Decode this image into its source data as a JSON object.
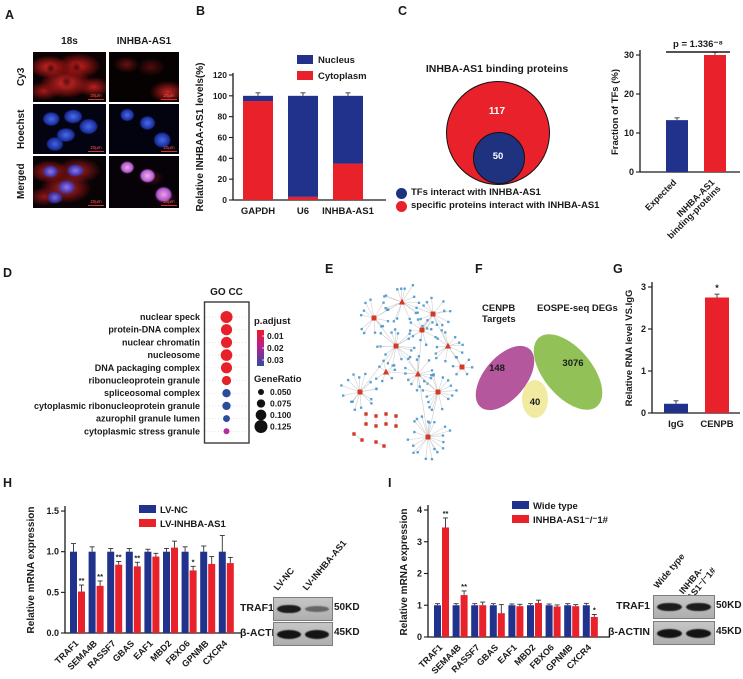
{
  "panelA": {
    "label": "A",
    "col_titles": [
      "18s",
      "INHBA-AS1"
    ],
    "row_labels": [
      "Cy3",
      "Hoechst",
      "Merged"
    ],
    "scale_bar": "20μm"
  },
  "panelB": {
    "label": "B"
  },
  "panelC": {
    "label": "C",
    "venn": {
      "title": "INHBA-AS1 binding proteins",
      "outer_value": "117",
      "inner_value": "50",
      "outer_color": "#e8212a",
      "inner_color": "#1f3280",
      "legend": [
        {
          "color": "#1f3280",
          "text": "TFs interact with INHBA-AS1"
        },
        {
          "color": "#e8212a",
          "text": "specific proteins interact with INHBA-AS1"
        }
      ]
    }
  },
  "panelD": {
    "label": "D"
  },
  "panelE": {
    "label": "E"
  },
  "panelF": {
    "label": "F"
  },
  "panelG": {
    "label": "G"
  },
  "panelH": {
    "label": "H",
    "blot": {
      "lanes": [
        "LV-NC",
        "LV-INHBA-AS1"
      ],
      "rows": [
        {
          "label": "TRAF1",
          "kd": "50KD",
          "bands": [
            0.95,
            0.5
          ]
        },
        {
          "label": "β-ACTIN",
          "kd": "45KD",
          "bands": [
            1,
            1
          ]
        }
      ]
    }
  },
  "panelI": {
    "label": "I",
    "blot": {
      "lanes": [
        "Wide type",
        "INHBA-\nAS1⁻/⁻1#"
      ],
      "rows": [
        {
          "label": "TRAF1",
          "kd": "50KD",
          "bands": [
            0.95,
            0.95
          ]
        },
        {
          "label": "β-ACTIN",
          "kd": "45KD",
          "bands": [
            1,
            1
          ]
        }
      ]
    }
  },
  "chart_data": {
    "B": {
      "type": "bar",
      "subtype": "stacked",
      "ylabel": "Relative INHBAA-AS1 levels(%)",
      "ylim": [
        0,
        120
      ],
      "yticks": [
        0,
        20,
        40,
        60,
        80,
        100,
        120
      ],
      "ytick_labels": [
        "0",
        "20",
        "40",
        "60",
        "80",
        "100",
        "120"
      ],
      "categories": [
        "GAPDH",
        "U6",
        "INHBA-AS1"
      ],
      "series": [
        {
          "name": "Nucleus",
          "color": "#20328c",
          "values": [
            5,
            97,
            65
          ]
        },
        {
          "name": "Cytoplasm",
          "color": "#e8212a",
          "values": [
            95,
            3,
            35
          ]
        }
      ]
    },
    "C_bar": {
      "type": "bar",
      "ylabel": "Fraction of TFs (%)",
      "ylim": [
        0,
        30
      ],
      "yticks": [
        0,
        10,
        20,
        30
      ],
      "ytick_labels": [
        "0",
        "10",
        "20",
        "30"
      ],
      "categories": [
        "Expected",
        "INHBA-AS1 binding-proteins"
      ],
      "category_lines": [
        [
          "Expected"
        ],
        [
          "INHBA-AS1",
          "binding-proteins"
        ]
      ],
      "values": [
        13.3,
        30
      ],
      "errors": [
        0.2,
        0.3
      ],
      "colors": [
        "#20328c",
        "#e8212a"
      ],
      "annotation": "p = 1.336⁻⁸"
    },
    "D": {
      "type": "scatter",
      "subtype": "dotplot",
      "title": "GO CC",
      "rows": [
        {
          "term": "nuclear speck",
          "ratio": 0.115,
          "color": "#e8202a"
        },
        {
          "term": "protein-DNA complex",
          "ratio": 0.105,
          "color": "#e8202a"
        },
        {
          "term": "nuclear chromatin",
          "ratio": 0.105,
          "color": "#e8202a"
        },
        {
          "term": "nucleosome",
          "ratio": 0.11,
          "color": "#e8202a"
        },
        {
          "term": "DNA packaging complex",
          "ratio": 0.105,
          "color": "#e8202a"
        },
        {
          "term": "ribonucleoprotein granule",
          "ratio": 0.085,
          "color": "#e8202a"
        },
        {
          "term": "spliceosomal complex",
          "ratio": 0.075,
          "color": "#2b4b9b"
        },
        {
          "term": "cytoplasmic ribonucleoprotein granule",
          "ratio": 0.075,
          "color": "#2b4b9b"
        },
        {
          "term": "azurophil granule lumen",
          "ratio": 0.06,
          "color": "#2b4b9b"
        },
        {
          "term": "cytoplasmic stress granule",
          "ratio": 0.05,
          "color": "#b0309e"
        }
      ],
      "p_legend_label": "p.adjust",
      "p_legend": [
        "0.01",
        "0.02",
        "0.03"
      ],
      "ratio_legend_label": "GeneRatio",
      "ratio_legend": [
        0.05,
        0.075,
        0.1,
        0.125
      ],
      "ratio_legend_labels": [
        "0.050",
        "0.075",
        "0.100",
        "0.125"
      ]
    },
    "E": {
      "type": "network",
      "hub_color": "#d43a2a",
      "leaf_color": "#4a97cb",
      "edge_color": "#cccccc",
      "hubs": [
        {
          "x": 72,
          "y": 30,
          "n": 15,
          "r": 20,
          "shape": "tri"
        },
        {
          "x": 103,
          "y": 42,
          "n": 13,
          "r": 17,
          "shape": "sq"
        },
        {
          "x": 44,
          "y": 46,
          "n": 12,
          "r": 17,
          "shape": "sq"
        },
        {
          "x": 118,
          "y": 74,
          "n": 12,
          "r": 16,
          "shape": "tri"
        },
        {
          "x": 66,
          "y": 74,
          "n": 15,
          "r": 19,
          "shape": "sq"
        },
        {
          "x": 92,
          "y": 58,
          "n": 10,
          "r": 14,
          "shape": "sq"
        },
        {
          "x": 88,
          "y": 102,
          "n": 14,
          "r": 17,
          "shape": "tri"
        },
        {
          "x": 30,
          "y": 120,
          "n": 15,
          "r": 18,
          "shape": "sq"
        },
        {
          "x": 108,
          "y": 120,
          "n": 15,
          "r": 18,
          "shape": "sq"
        },
        {
          "x": 98,
          "y": 165,
          "n": 20,
          "r": 21,
          "shape": "sq"
        },
        {
          "x": 56,
          "y": 100,
          "n": 7,
          "r": 11,
          "shape": "tri"
        },
        {
          "x": 132,
          "y": 95,
          "n": 6,
          "r": 10,
          "shape": "sq"
        }
      ],
      "links": [
        [
          0,
          1
        ],
        [
          0,
          2
        ],
        [
          1,
          3
        ],
        [
          1,
          5
        ],
        [
          2,
          4
        ],
        [
          4,
          5
        ],
        [
          4,
          6
        ],
        [
          5,
          6
        ],
        [
          4,
          7
        ],
        [
          6,
          8
        ],
        [
          6,
          9
        ],
        [
          8,
          9
        ],
        [
          3,
          11
        ],
        [
          6,
          10
        ]
      ],
      "chains": [
        [
          36,
          142,
          36,
          152
        ],
        [
          46,
          144,
          46,
          154
        ],
        [
          56,
          142,
          56,
          152
        ],
        [
          66,
          144,
          66,
          154
        ],
        [
          24,
          162,
          32,
          168
        ],
        [
          46,
          170,
          54,
          174
        ]
      ]
    },
    "F": {
      "type": "venn",
      "sets": [
        {
          "label_lines": [
            "CENPB",
            "Targets"
          ],
          "value": "148",
          "color": "#b5579d"
        },
        {
          "label_lines": [
            "EOSPE-seq DEGs"
          ],
          "value": "3076",
          "color": "#8cbf4e"
        }
      ],
      "overlap": {
        "value": "40",
        "color": "#f1eba1"
      }
    },
    "G": {
      "type": "bar",
      "ylabel": "Relative RNA level VS.IgG",
      "ylim": [
        0,
        3
      ],
      "yticks": [
        0,
        1,
        2,
        3
      ],
      "ytick_labels": [
        "0",
        "1",
        "2",
        "3"
      ],
      "categories": [
        "IgG",
        "CENPB"
      ],
      "values": [
        0.22,
        2.75
      ],
      "errors": [
        0.07,
        0.08
      ],
      "colors": [
        "#20328c",
        "#e8212a"
      ],
      "sig": [
        "",
        "*"
      ]
    },
    "H": {
      "type": "bar",
      "subtype": "grouped",
      "ylabel": "Relative mRNA expression",
      "ylim": [
        0,
        1.5
      ],
      "yticks": [
        0,
        0.5,
        1,
        1.5
      ],
      "ytick_labels": [
        "0.0",
        "0.5",
        "1.0",
        "1.5"
      ],
      "categories": [
        "TRAF1",
        "SEMA4B",
        "RASSF7",
        "GBAS",
        "EAF1",
        "MBD2",
        "FBXO6",
        "GPNMB",
        "CXCR4"
      ],
      "series": [
        {
          "name": "LV-NC",
          "color": "#20328c",
          "values": [
            1,
            1,
            1,
            1,
            1,
            1,
            1,
            1,
            1
          ],
          "errors": [
            0.1,
            0.06,
            0.04,
            0.04,
            0.03,
            0.04,
            0.06,
            0.07,
            0.2
          ]
        },
        {
          "name": "LV-INHBA-AS1",
          "color": "#e8212a",
          "values": [
            0.51,
            0.58,
            0.84,
            0.82,
            0.94,
            1.05,
            0.77,
            0.85,
            0.86
          ],
          "errors": [
            0.08,
            0.06,
            0.04,
            0.05,
            0.04,
            0.08,
            0.05,
            0.09,
            0.07
          ]
        }
      ],
      "sig": [
        "**",
        "**",
        "**",
        "**",
        "",
        "",
        "*",
        "",
        ""
      ]
    },
    "I": {
      "type": "bar",
      "subtype": "grouped",
      "ylabel": "Relative mRNA expression",
      "ylim": [
        0,
        4
      ],
      "yticks": [
        0,
        1,
        2,
        3,
        4
      ],
      "ytick_labels": [
        "0",
        "1",
        "2",
        "3",
        "4"
      ],
      "categories": [
        "TRAF1",
        "SEMA4B",
        "RASSF7",
        "GBAS",
        "EAF1",
        "MBD2",
        "FBXO6",
        "GPNMB",
        "CXCR4"
      ],
      "series": [
        {
          "name": "Wide type",
          "color": "#20328c",
          "values": [
            1,
            1,
            1,
            1,
            1,
            1,
            1,
            1,
            1
          ],
          "errors": [
            0.05,
            0.05,
            0.05,
            0.05,
            0.04,
            0.05,
            0.04,
            0.05,
            0.06
          ]
        },
        {
          "name": "INHBA-AS1⁻/⁻1#",
          "color": "#e8212a",
          "values": [
            3.45,
            1.32,
            1.0,
            0.75,
            0.97,
            1.07,
            0.96,
            0.97,
            0.63
          ],
          "errors": [
            0.3,
            0.13,
            0.1,
            0.27,
            0.06,
            0.09,
            0.05,
            0.05,
            0.08
          ]
        }
      ],
      "sig": [
        "**",
        "**",
        "",
        "",
        "",
        "",
        "",
        "",
        "*"
      ]
    }
  }
}
